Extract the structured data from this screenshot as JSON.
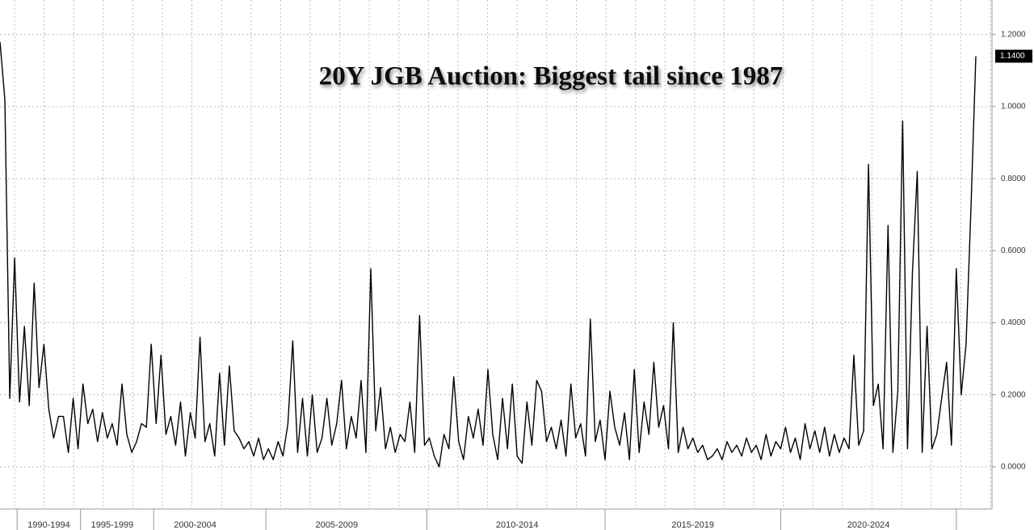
{
  "chart_data": {
    "type": "line",
    "title": "20Y JGB Auction: Biggest tail since 1987",
    "categories": [
      null,
      null,
      null,
      null,
      null,
      null,
      null,
      null,
      null,
      null,
      "1990-1994",
      null,
      null,
      null,
      null,
      null,
      null,
      null,
      null,
      null,
      null,
      null,
      null,
      "1995-1999",
      null,
      null,
      null,
      null,
      null,
      null,
      null,
      null,
      null,
      null,
      null,
      null,
      null,
      null,
      null,
      null,
      "2000-2004",
      null,
      null,
      null,
      null,
      null,
      null,
      null,
      null,
      null,
      null,
      null,
      null,
      null,
      null,
      null,
      null,
      null,
      null,
      null,
      null,
      null,
      null,
      null,
      null,
      null,
      null,
      null,
      null,
      "2005-2009",
      null,
      null,
      null,
      null,
      null,
      null,
      null,
      null,
      null,
      null,
      null,
      null,
      null,
      null,
      null,
      null,
      null,
      null,
      null,
      null,
      null,
      null,
      null,
      null,
      null,
      null,
      null,
      null,
      null,
      null,
      null,
      null,
      null,
      null,
      null,
      null,
      "2010-2014",
      null,
      null,
      null,
      null,
      null,
      null,
      null,
      null,
      null,
      null,
      null,
      null,
      null,
      null,
      null,
      null,
      null,
      null,
      null,
      null,
      null,
      null,
      null,
      null,
      null,
      null,
      null,
      null,
      null,
      null,
      null,
      null,
      null,
      null,
      null,
      "2015-2019",
      null,
      null,
      null,
      null,
      null,
      null,
      null,
      null,
      null,
      null,
      null,
      null,
      null,
      null,
      null,
      null,
      null,
      null,
      null,
      null,
      null,
      null,
      null,
      null,
      null,
      null,
      null,
      null,
      null,
      null,
      null,
      null,
      null,
      null,
      null,
      "2020-2024",
      null,
      null,
      null,
      null,
      null,
      null,
      null,
      null,
      null,
      null,
      null,
      null,
      null,
      null,
      null,
      null,
      null,
      null,
      null,
      null,
      null,
      null
    ],
    "series": [
      {
        "color": "#000000",
        "values": [
          1.18,
          1.02,
          0.19,
          0.58,
          0.18,
          0.39,
          0.17,
          0.51,
          0.22,
          0.34,
          0.16,
          0.08,
          0.14,
          0.14,
          0.04,
          0.19,
          0.05,
          0.23,
          0.12,
          0.16,
          0.07,
          0.15,
          0.08,
          0.12,
          0.06,
          0.23,
          0.09,
          0.04,
          0.07,
          0.12,
          0.11,
          0.34,
          0.12,
          0.31,
          0.09,
          0.14,
          0.06,
          0.18,
          0.03,
          0.15,
          0.08,
          0.36,
          0.07,
          0.12,
          0.03,
          0.26,
          0.06,
          0.28,
          0.1,
          0.08,
          0.05,
          0.07,
          0.03,
          0.08,
          0.02,
          0.05,
          0.02,
          0.07,
          0.03,
          0.12,
          0.35,
          0.04,
          0.19,
          0.03,
          0.2,
          0.04,
          0.08,
          0.19,
          0.06,
          0.12,
          0.24,
          0.05,
          0.14,
          0.08,
          0.24,
          0.04,
          0.55,
          0.1,
          0.22,
          0.05,
          0.11,
          0.04,
          0.09,
          0.07,
          0.18,
          0.04,
          0.42,
          0.06,
          0.08,
          0.03,
          0.0,
          0.09,
          0.05,
          0.25,
          0.07,
          0.02,
          0.14,
          0.08,
          0.16,
          0.06,
          0.27,
          0.09,
          0.02,
          0.19,
          0.05,
          0.23,
          0.03,
          0.01,
          0.18,
          0.06,
          0.24,
          0.21,
          0.07,
          0.11,
          0.05,
          0.13,
          0.03,
          0.23,
          0.08,
          0.12,
          0.03,
          0.41,
          0.07,
          0.13,
          0.02,
          0.21,
          0.11,
          0.06,
          0.15,
          0.02,
          0.27,
          0.04,
          0.18,
          0.09,
          0.29,
          0.11,
          0.17,
          0.05,
          0.4,
          0.04,
          0.11,
          0.05,
          0.08,
          0.04,
          0.06,
          0.02,
          0.03,
          0.05,
          0.02,
          0.07,
          0.04,
          0.06,
          0.03,
          0.08,
          0.04,
          0.06,
          0.02,
          0.09,
          0.03,
          0.07,
          0.05,
          0.11,
          0.04,
          0.08,
          0.02,
          0.12,
          0.05,
          0.1,
          0.04,
          0.11,
          0.03,
          0.09,
          0.04,
          0.08,
          0.05,
          0.31,
          0.06,
          0.1,
          0.84,
          0.17,
          0.23,
          0.05,
          0.67,
          0.04,
          0.21,
          0.96,
          0.05,
          0.54,
          0.82,
          0.04,
          0.39,
          0.05,
          0.09,
          0.19,
          0.29,
          0.06,
          0.55,
          0.2,
          0.34,
          0.72,
          1.14
        ],
        "value_labels": [
          null,
          null,
          null,
          null,
          null,
          null,
          null,
          null,
          null,
          null,
          null,
          null,
          null,
          null,
          null,
          null,
          null,
          null,
          null,
          null,
          null,
          null,
          null,
          null,
          null,
          null,
          null,
          null,
          null,
          null,
          null,
          null,
          null,
          null,
          null,
          null,
          null,
          null,
          null,
          null,
          null,
          null,
          null,
          null,
          null,
          null,
          null,
          null,
          null,
          null,
          null,
          null,
          null,
          null,
          null,
          null,
          null,
          null,
          null,
          null,
          null,
          null,
          null,
          null,
          null,
          null,
          null,
          null,
          null,
          null,
          null,
          null,
          null,
          null,
          null,
          null,
          null,
          null,
          null,
          null,
          null,
          null,
          null,
          null,
          null,
          null,
          null,
          null,
          null,
          null,
          null,
          null,
          null,
          null,
          null,
          null,
          null,
          null,
          null,
          null,
          null,
          null,
          null,
          null,
          null,
          null,
          null,
          null,
          null,
          null,
          null,
          null,
          null,
          null,
          null,
          null,
          null,
          null,
          null,
          null,
          null,
          null,
          null,
          null,
          null,
          null,
          null,
          null,
          null,
          null,
          null,
          null,
          null,
          null,
          null,
          null,
          null,
          null,
          null,
          null,
          null,
          null,
          null,
          null,
          null,
          null,
          null,
          null,
          null,
          null,
          null,
          null,
          null,
          null,
          null,
          null,
          null,
          null,
          null,
          null,
          null,
          null,
          null,
          null,
          null,
          null,
          null,
          null,
          null,
          null,
          null,
          null,
          null,
          null,
          null,
          null,
          null,
          null,
          null,
          null,
          null,
          null,
          null,
          null,
          null,
          null,
          null,
          null,
          null,
          null,
          null,
          null,
          null,
          null,
          null,
          null,
          null,
          null,
          null,
          null,
          "1.1400"
        ]
      }
    ],
    "ylim": [
      -0.117,
      1.296
    ],
    "yticks": [
      {
        "value": 0,
        "label": "0.0000"
      },
      {
        "value": 0.2,
        "label": "0.2000"
      },
      {
        "value": 0.4,
        "label": "0.4000"
      },
      {
        "value": 0.6,
        "label": "0.6000"
      },
      {
        "value": 0.8,
        "label": "0.8000"
      },
      {
        "value": 1.0,
        "label": "1.0000"
      },
      {
        "value": 1.2,
        "label": "1.2000"
      }
    ],
    "grid": true
  }
}
